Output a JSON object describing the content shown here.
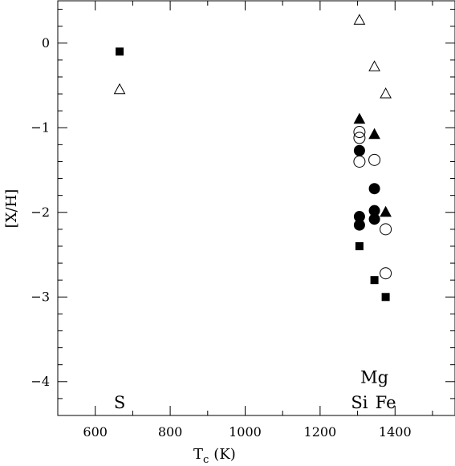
{
  "chart_data": {
    "type": "scatter",
    "xlabel": "T",
    "xlabel_sub": "c",
    "xlabel_unit": "(K)",
    "ylabel": "[X/H]",
    "xlim": [
      500,
      1560
    ],
    "ylim": [
      -4.4,
      0.5
    ],
    "xticks": [
      600,
      800,
      1000,
      1200,
      1400
    ],
    "yticks": [
      0,
      -1,
      -2,
      -3,
      -4
    ],
    "minor_x_step": 100,
    "minor_y_step": 0.2,
    "grid": false,
    "annotations": [
      {
        "text": "S",
        "x": 665,
        "y": -4.25
      },
      {
        "text": "Si",
        "x": 1305,
        "y": -4.25
      },
      {
        "text": "Mg",
        "x": 1345,
        "y": -3.95
      },
      {
        "text": "Fe",
        "x": 1375,
        "y": -4.25
      }
    ],
    "series": [
      {
        "marker": "filled-square",
        "points": [
          [
            665,
            -0.1
          ],
          [
            1305,
            -2.4
          ],
          [
            1345,
            -2.8
          ],
          [
            1375,
            -3.0
          ]
        ]
      },
      {
        "marker": "open-triangle",
        "points": [
          [
            665,
            -0.55
          ],
          [
            1305,
            0.27
          ],
          [
            1345,
            -0.28
          ],
          [
            1375,
            -0.6
          ]
        ]
      },
      {
        "marker": "filled-triangle",
        "points": [
          [
            1305,
            -0.9
          ],
          [
            1345,
            -1.08
          ],
          [
            1375,
            -2.0
          ]
        ]
      },
      {
        "marker": "open-circle",
        "points": [
          [
            1305,
            -1.05
          ],
          [
            1305,
            -1.12
          ],
          [
            1305,
            -1.4
          ],
          [
            1345,
            -1.38
          ],
          [
            1375,
            -2.2
          ],
          [
            1375,
            -2.72
          ]
        ]
      },
      {
        "marker": "filled-circle",
        "points": [
          [
            1305,
            -1.27
          ],
          [
            1305,
            -2.05
          ],
          [
            1305,
            -2.15
          ],
          [
            1345,
            -1.72
          ],
          [
            1345,
            -1.98
          ],
          [
            1345,
            -2.08
          ]
        ]
      }
    ]
  }
}
